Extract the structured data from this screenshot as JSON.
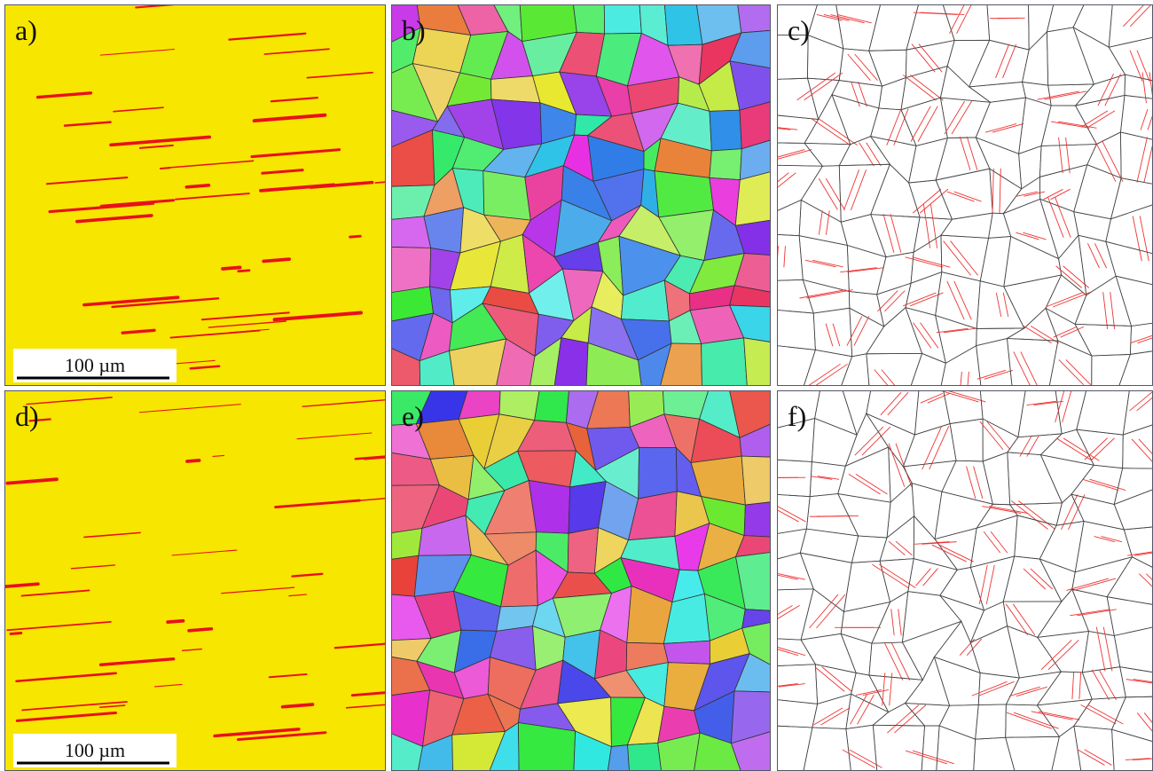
{
  "panels": [
    {
      "label": "a)",
      "scale_bar": "100 µm"
    },
    {
      "label": "b)"
    },
    {
      "label": "c)"
    },
    {
      "label": "d)",
      "scale_bar": "100 µm"
    },
    {
      "label": "e)"
    },
    {
      "label": "f)"
    }
  ]
}
